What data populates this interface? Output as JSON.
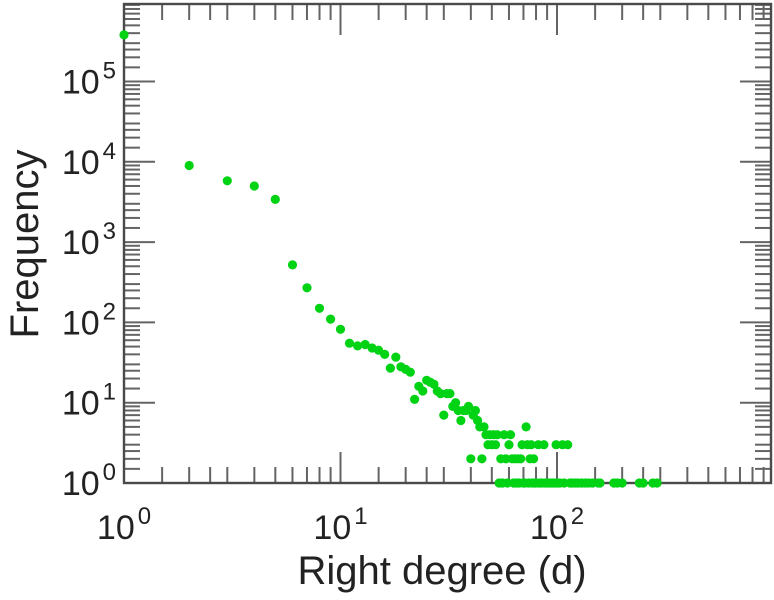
{
  "figure": {
    "background": "#ffffff",
    "point_color": "#00d214",
    "frame_color": "#4a4a4a",
    "tick_color": "#646464",
    "text_color": "#222222"
  },
  "chart_data": {
    "type": "scatter",
    "title": "",
    "xlabel": "Right degree (d)",
    "ylabel": "Frequency",
    "x_scale": "log",
    "y_scale": "log",
    "xlim": [
      1,
      970
    ],
    "ylim": [
      1,
      920000
    ],
    "grid": false,
    "legend": null,
    "x_major_ticks": [
      {
        "value": 1,
        "base": "10",
        "exp": "0"
      },
      {
        "value": 10,
        "base": "10",
        "exp": "1"
      },
      {
        "value": 100,
        "base": "10",
        "exp": "2"
      }
    ],
    "y_major_ticks": [
      {
        "value": 1,
        "base": "10",
        "exp": "0"
      },
      {
        "value": 10,
        "base": "10",
        "exp": "1"
      },
      {
        "value": 100,
        "base": "10",
        "exp": "2"
      },
      {
        "value": 1000,
        "base": "10",
        "exp": "3"
      },
      {
        "value": 10000,
        "base": "10",
        "exp": "4"
      },
      {
        "value": 100000,
        "base": "10",
        "exp": "5"
      }
    ],
    "minor_tick_multiples": [
      1.5,
      2,
      2.5,
      3,
      4,
      5,
      6,
      7,
      8,
      9
    ],
    "points": [
      [
        1,
        380000
      ],
      [
        2,
        9000
      ],
      [
        3,
        5800
      ],
      [
        4,
        5000
      ],
      [
        5,
        3400
      ],
      [
        6,
        520
      ],
      [
        7,
        270
      ],
      [
        8,
        150
      ],
      [
        9,
        110
      ],
      [
        10,
        82
      ],
      [
        11,
        55
      ],
      [
        12,
        51
      ],
      [
        13,
        53
      ],
      [
        14,
        48
      ],
      [
        15,
        45
      ],
      [
        16,
        40
      ],
      [
        17,
        27
      ],
      [
        18,
        37
      ],
      [
        19,
        28
      ],
      [
        20,
        26
      ],
      [
        21,
        24
      ],
      [
        22,
        11
      ],
      [
        23,
        16
      ],
      [
        24,
        14
      ],
      [
        25,
        19
      ],
      [
        26,
        18
      ],
      [
        27,
        17
      ],
      [
        28,
        14
      ],
      [
        29,
        13
      ],
      [
        30,
        7
      ],
      [
        31,
        13
      ],
      [
        32,
        13
      ],
      [
        33,
        9
      ],
      [
        34,
        10
      ],
      [
        35,
        8
      ],
      [
        36,
        6
      ],
      [
        37,
        8
      ],
      [
        38,
        8
      ],
      [
        39,
        9
      ],
      [
        40,
        2
      ],
      [
        41,
        7
      ],
      [
        42,
        8
      ],
      [
        43,
        6
      ],
      [
        44,
        5
      ],
      [
        45,
        2
      ],
      [
        46,
        5
      ],
      [
        47,
        4
      ],
      [
        48,
        3
      ],
      [
        49,
        4
      ],
      [
        50,
        3
      ],
      [
        51,
        4
      ],
      [
        52,
        3
      ],
      [
        53,
        4
      ],
      [
        54,
        1
      ],
      [
        55,
        2
      ],
      [
        56,
        1
      ],
      [
        57,
        4
      ],
      [
        58,
        2
      ],
      [
        59,
        1
      ],
      [
        60,
        3
      ],
      [
        61,
        4
      ],
      [
        62,
        2
      ],
      [
        63,
        1
      ],
      [
        64,
        2
      ],
      [
        65,
        1
      ],
      [
        66,
        2
      ],
      [
        67,
        1
      ],
      [
        68,
        2
      ],
      [
        69,
        3
      ],
      [
        70,
        1
      ],
      [
        71,
        1
      ],
      [
        72,
        5
      ],
      [
        73,
        3
      ],
      [
        74,
        1
      ],
      [
        75,
        2
      ],
      [
        76,
        3
      ],
      [
        77,
        1
      ],
      [
        78,
        2
      ],
      [
        79,
        1
      ],
      [
        80,
        1
      ],
      [
        82,
        3
      ],
      [
        83,
        1
      ],
      [
        85,
        1
      ],
      [
        87,
        3
      ],
      [
        88,
        1
      ],
      [
        90,
        1
      ],
      [
        92,
        1
      ],
      [
        95,
        1
      ],
      [
        97,
        1
      ],
      [
        99,
        3
      ],
      [
        100,
        1
      ],
      [
        103,
        1
      ],
      [
        106,
        3
      ],
      [
        108,
        1
      ],
      [
        112,
        3
      ],
      [
        115,
        1
      ],
      [
        118,
        1
      ],
      [
        122,
        1
      ],
      [
        125,
        1
      ],
      [
        130,
        1
      ],
      [
        135,
        1
      ],
      [
        140,
        1
      ],
      [
        146,
        1
      ],
      [
        155,
        1
      ],
      [
        158,
        1
      ],
      [
        183,
        1
      ],
      [
        190,
        1
      ],
      [
        200,
        1
      ],
      [
        240,
        1
      ],
      [
        250,
        1
      ],
      [
        277,
        1
      ],
      [
        290,
        1
      ]
    ]
  }
}
